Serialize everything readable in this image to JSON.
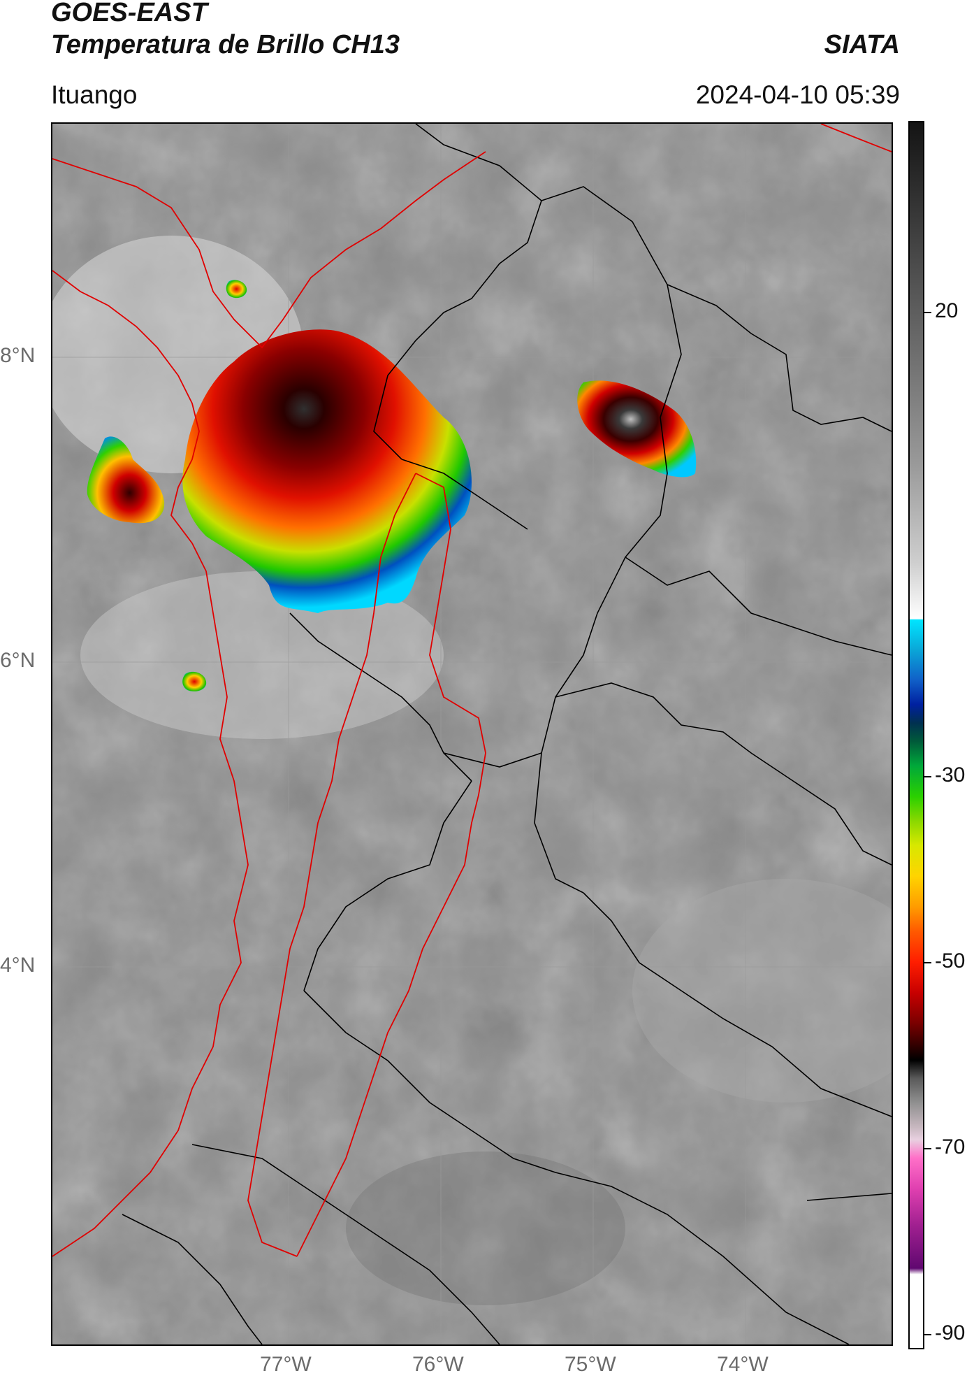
{
  "header": {
    "satellite": "GOES-EAST",
    "product": "Temperatura de Brillo CH13",
    "agency": "SIATA",
    "location": "Ituango",
    "datetime": "2024-04-10 05:39"
  },
  "axes": {
    "latitude_ticks": [
      "8°N",
      "6°N",
      "4°N"
    ],
    "longitude_ticks": [
      "77°W",
      "76°W",
      "75°W",
      "74°W"
    ]
  },
  "colorbar": {
    "ticks": [
      "20",
      "-30",
      "-50",
      "-70",
      "-90"
    ],
    "palette": [
      "#141414",
      "#ffffff",
      "#00e5ff",
      "#1060c8",
      "#00a83a",
      "#d8e800",
      "#ff9c00",
      "#ff1e00",
      "#7a0000",
      "#000000",
      "#ff70c8",
      "#600870"
    ]
  },
  "map": {
    "background": "grayscale infrared brightness temperature",
    "boundary_colors": {
      "departments": "#000000",
      "ituango_basin": "#e00000"
    }
  }
}
